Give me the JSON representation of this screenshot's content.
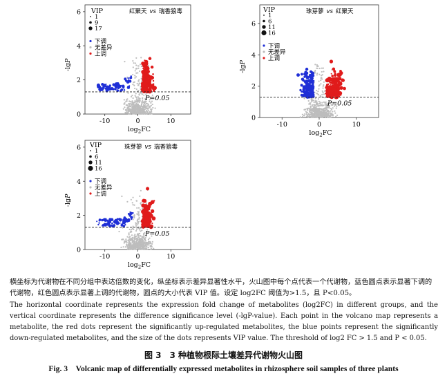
{
  "panels": [
    {
      "id": "p1",
      "title_a": "红聚天",
      "title_vs": "vs",
      "title_b": "瑞香狼毒",
      "vip_title": "VIP",
      "vip_levels": [
        "1",
        "9",
        "17"
      ],
      "legend": {
        "down": "下调",
        "ns": "无差异",
        "up": "上调"
      },
      "ylabel": "-lgP",
      "xlabel": "log2FC",
      "x_ticks": [
        "-10",
        "0",
        "10"
      ],
      "y_ticks": [
        "0",
        "2",
        "4",
        "6"
      ],
      "threshold_label": "P=0.05"
    },
    {
      "id": "p2",
      "title_a": "珠芽蓼",
      "title_vs": "vs",
      "title_b": "红聚天",
      "vip_title": "VIP",
      "vip_levels": [
        "1",
        "6",
        "11",
        "16"
      ],
      "legend": {
        "down": "下调",
        "ns": "无差异",
        "up": "上调"
      },
      "ylabel": "-lgP",
      "xlabel": "log2FC",
      "x_ticks": [
        "-10",
        "0",
        "10"
      ],
      "y_ticks": [
        "0",
        "2",
        "4",
        "6"
      ],
      "threshold_label": "P=0.05"
    },
    {
      "id": "p3",
      "title_a": "珠芽蓼",
      "title_vs": "vs",
      "title_b": "瑞香狼毒",
      "vip_title": "VIP",
      "vip_levels": [
        "1",
        "6",
        "11",
        "16"
      ],
      "legend": {
        "down": "下调",
        "ns": "无差异",
        "up": "上调"
      },
      "ylabel": "-lgP",
      "xlabel": "log2FC",
      "x_ticks": [
        "-10",
        "0",
        "10"
      ],
      "y_ticks": [
        "0",
        "2",
        "4",
        "6"
      ],
      "threshold_label": "P=0.05"
    }
  ],
  "chart_data": [
    {
      "type": "scatter",
      "x_range": [
        -16,
        16
      ],
      "y_range": [
        0,
        6.4
      ],
      "threshold_y": 1.3
    },
    {
      "type": "scatter",
      "x_range": [
        -16,
        16
      ],
      "y_range": [
        0,
        7.2
      ],
      "threshold_y": 1.3
    },
    {
      "type": "scatter",
      "x_range": [
        -16,
        16
      ],
      "y_range": [
        0,
        6.4
      ],
      "threshold_y": 1.3
    }
  ],
  "caption": {
    "cn": "横坐标为代谢物在不同分组中表达倍数的变化，纵坐标表示差异显著性水平，火山图中每个点代表一个代谢物，蓝色圆点表示显著下调的代谢物，红色圆点表示显著上调的代谢物，圆点的大小代表 VIP 值。设定 log2FC 阈值为>1.5，且 P<0.05。",
    "en": "The horizontal coordinate represents the expression fold change of metabolites (log2FC) in different groups, and the vertical coordinate represents the difference significance level (-lgP-value). Each point in the volcano map represents a metabolite, the red dots represent the significantly up-regulated metabolites, the blue points represent the significantly down-regulated metabolites, and the size of the dots represents VIP value. The threshold of log2 FC > 1.5 and P < 0.05.",
    "fig_cn": "图 3　3 种植物根际土壤差异代谢物火山图",
    "fig_en": "Fig. 3　Volcanic map of differentially expressed metabolites in rhizosphere soil samples of three plants"
  },
  "colors": {
    "down": "#1f2fd6",
    "up": "#e01b1b",
    "ns": "#bdbdbd",
    "frame": "#333333"
  }
}
